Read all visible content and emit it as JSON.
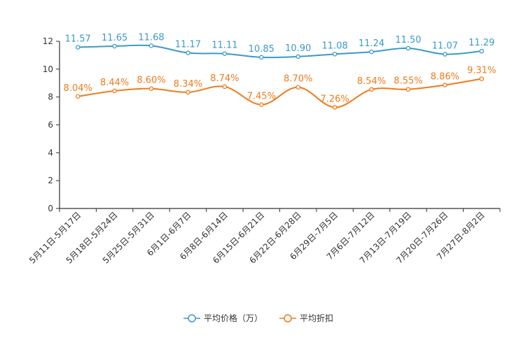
{
  "chart_data": {
    "type": "line",
    "title": "",
    "xlabel": "",
    "ylabel": "",
    "ylim": [
      0,
      12
    ],
    "yticks": [
      "0",
      "2",
      "4",
      "6",
      "8",
      "10",
      "12"
    ],
    "categories": [
      "5月11日-5月17日",
      "5月18日-5月24日",
      "5月25日-5月31日",
      "6月1日-6月7日",
      "6月8日-6月14日",
      "6月15日-6月21日",
      "6月22日-6月28日",
      "6月29日-7月5日",
      "7月6日-7月12日",
      "7月13日-7月19日",
      "7月20日-7月26日",
      "7月27日-8月2日"
    ],
    "series": [
      {
        "name": "平均价格（万）",
        "color": "#3a9ac9",
        "values": [
          11.57,
          11.65,
          11.68,
          11.17,
          11.11,
          10.85,
          10.9,
          11.08,
          11.24,
          11.5,
          11.07,
          11.29
        ],
        "labels": [
          "11.57",
          "11.65",
          "11.68",
          "11.17",
          "11.11",
          "10.85",
          "10.90",
          "11.08",
          "11.24",
          "11.50",
          "11.07",
          "11.29"
        ]
      },
      {
        "name": "平均折扣",
        "color": "#f07a1a",
        "values": [
          8.04,
          8.44,
          8.6,
          8.34,
          8.74,
          7.45,
          8.7,
          7.26,
          8.54,
          8.55,
          8.86,
          9.31
        ],
        "labels": [
          "8.04%",
          "8.44%",
          "8.60%",
          "8.34%",
          "8.74%",
          "7.45%",
          "8.70%",
          "7.26%",
          "8.54%",
          "8.55%",
          "8.86%",
          "9.31%"
        ]
      }
    ],
    "legend": {
      "position": "bottom-center",
      "items": [
        "平均价格（万）",
        "平均折扣"
      ]
    },
    "grid": false
  }
}
